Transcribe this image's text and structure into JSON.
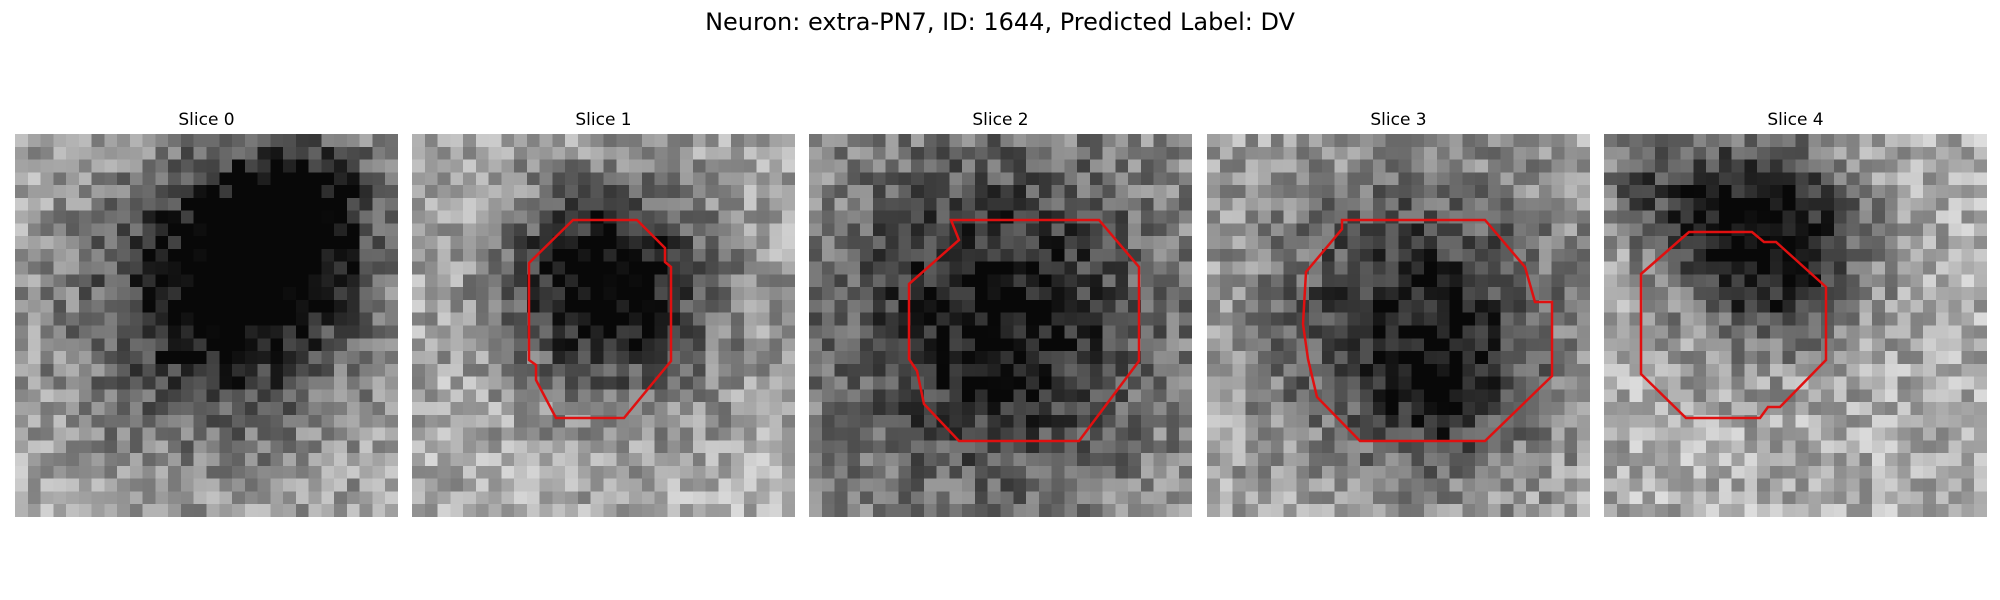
{
  "figure": {
    "title": "Neuron: extra-PN7, ID: 1644, Predicted Label: DV"
  },
  "panels": [
    {
      "title": "Slice 0",
      "has_contour": false
    },
    {
      "title": "Slice 1",
      "has_contour": true
    },
    {
      "title": "Slice 2",
      "has_contour": true
    },
    {
      "title": "Slice 3",
      "has_contour": true
    },
    {
      "title": "Slice 4",
      "has_contour": true
    }
  ],
  "colors": {
    "contour": "#e01010",
    "colormap": "gray"
  }
}
